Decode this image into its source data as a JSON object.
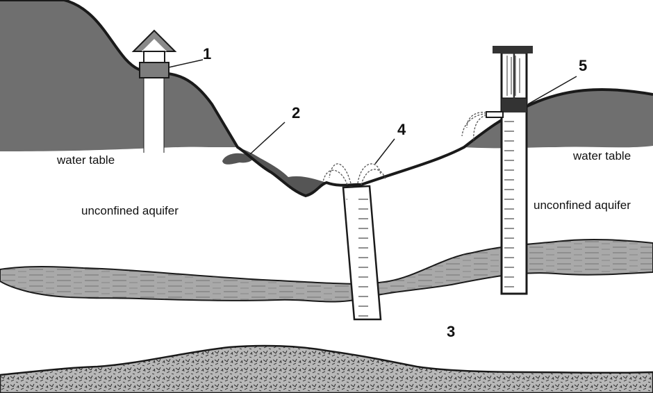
{
  "labels": {
    "water_table_left": "water table",
    "water_table_right": "water table",
    "aquifer_left": "unconfined aquifer",
    "aquifer_right": "unconfined aquifer"
  },
  "numbers": {
    "n1": "1",
    "n2": "2",
    "n3": "3",
    "n4": "4",
    "n5": "5"
  },
  "colors": {
    "saturated_zone": "#6f6f6f",
    "clay_layer": "#a9a9a9",
    "bedrock": "#b5b5b5",
    "outline": "#1a1a1a",
    "background": "#ffffff"
  }
}
